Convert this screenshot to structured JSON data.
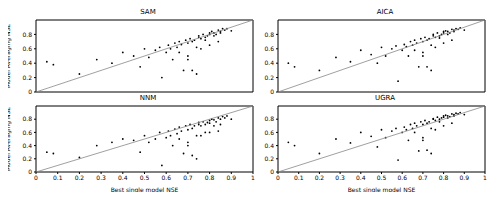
{
  "chart_data": [
    {
      "type": "scatter",
      "title": "SAM",
      "y_label": "Model Averaging NSE",
      "tick_labels": "y",
      "xlim": [
        0,
        1
      ],
      "xticks": [
        0,
        0.1,
        0.2,
        0.3,
        0.4,
        0.5,
        0.6,
        0.7,
        0.8,
        0.9,
        1
      ],
      "ylim": [
        0,
        1
      ],
      "yticks": [
        0,
        0.2,
        0.4,
        0.6,
        0.8
      ],
      "series": [
        {
          "type": "scatter",
          "color": "#000000",
          "marker": "dot",
          "x": [
            0.05,
            0.08,
            0.2,
            0.28,
            0.35,
            0.4,
            0.45,
            0.48,
            0.5,
            0.52,
            0.55,
            0.57,
            0.6,
            0.61,
            0.62,
            0.63,
            0.64,
            0.65,
            0.66,
            0.67,
            0.68,
            0.69,
            0.7,
            0.7,
            0.71,
            0.72,
            0.73,
            0.74,
            0.75,
            0.75,
            0.76,
            0.77,
            0.78,
            0.78,
            0.79,
            0.8,
            0.8,
            0.81,
            0.82,
            0.82,
            0.83,
            0.84,
            0.85,
            0.85,
            0.86,
            0.87,
            0.88,
            0.9,
            0.58,
            0.66,
            0.72,
            0.76,
            0.8,
            0.84,
            0.7,
            0.74
          ],
          "values": [
            0.42,
            0.38,
            0.25,
            0.45,
            0.4,
            0.55,
            0.5,
            0.35,
            0.6,
            0.48,
            0.58,
            0.62,
            0.55,
            0.65,
            0.6,
            0.45,
            0.68,
            0.62,
            0.7,
            0.66,
            0.3,
            0.72,
            0.68,
            0.5,
            0.74,
            0.7,
            0.72,
            0.62,
            0.76,
            0.78,
            0.74,
            0.8,
            0.76,
            0.72,
            0.78,
            0.82,
            0.8,
            0.84,
            0.78,
            0.82,
            0.8,
            0.86,
            0.84,
            0.82,
            0.88,
            0.86,
            0.88,
            0.85,
            0.2,
            0.55,
            0.3,
            0.6,
            0.65,
            0.7,
            0.45,
            0.25
          ]
        },
        {
          "type": "line",
          "color": "#888888",
          "line_style": "solid",
          "x": [
            0,
            1
          ],
          "values": [
            0,
            1
          ]
        }
      ]
    },
    {
      "type": "scatter",
      "title": "AICA",
      "tick_labels": "y",
      "xlim": [
        0,
        1
      ],
      "xticks": [
        0,
        0.1,
        0.2,
        0.3,
        0.4,
        0.5,
        0.6,
        0.7,
        0.8,
        0.9,
        1
      ],
      "ylim": [
        0,
        1
      ],
      "yticks": [
        0,
        0.2,
        0.4,
        0.6,
        0.8
      ],
      "series": [
        {
          "type": "scatter",
          "color": "#000000",
          "marker": "dot",
          "x": [
            0.05,
            0.08,
            0.2,
            0.28,
            0.35,
            0.4,
            0.45,
            0.48,
            0.5,
            0.52,
            0.55,
            0.57,
            0.6,
            0.61,
            0.62,
            0.63,
            0.64,
            0.65,
            0.66,
            0.67,
            0.68,
            0.69,
            0.7,
            0.7,
            0.71,
            0.72,
            0.73,
            0.74,
            0.75,
            0.75,
            0.76,
            0.77,
            0.78,
            0.78,
            0.79,
            0.8,
            0.8,
            0.81,
            0.82,
            0.82,
            0.83,
            0.84,
            0.85,
            0.85,
            0.86,
            0.87,
            0.88,
            0.9,
            0.58,
            0.66,
            0.72,
            0.76,
            0.8,
            0.84,
            0.7,
            0.74
          ],
          "values": [
            0.4,
            0.35,
            0.3,
            0.48,
            0.42,
            0.58,
            0.52,
            0.4,
            0.62,
            0.5,
            0.6,
            0.64,
            0.58,
            0.66,
            0.63,
            0.5,
            0.7,
            0.65,
            0.72,
            0.68,
            0.35,
            0.74,
            0.7,
            0.55,
            0.76,
            0.72,
            0.74,
            0.65,
            0.78,
            0.8,
            0.76,
            0.82,
            0.78,
            0.75,
            0.8,
            0.84,
            0.82,
            0.85,
            0.8,
            0.84,
            0.82,
            0.87,
            0.86,
            0.84,
            0.88,
            0.87,
            0.89,
            0.86,
            0.15,
            0.58,
            0.35,
            0.62,
            0.68,
            0.72,
            0.5,
            0.3
          ]
        },
        {
          "type": "line",
          "color": "#888888",
          "line_style": "solid",
          "x": [
            0,
            1
          ],
          "values": [
            0,
            1
          ]
        }
      ]
    },
    {
      "type": "scatter",
      "title": "NNM",
      "x_label": "Best single model NSE",
      "y_label": "Model Averaging NSE",
      "xlim": [
        0,
        1
      ],
      "xticks": [
        0,
        0.1,
        0.2,
        0.3,
        0.4,
        0.5,
        0.6,
        0.7,
        0.8,
        0.9,
        1
      ],
      "ylim": [
        0,
        1
      ],
      "yticks": [
        0,
        0.2,
        0.4,
        0.6,
        0.8
      ],
      "series": [
        {
          "type": "scatter",
          "color": "#000000",
          "marker": "dot",
          "x": [
            0.05,
            0.08,
            0.2,
            0.28,
            0.35,
            0.4,
            0.45,
            0.48,
            0.5,
            0.52,
            0.55,
            0.57,
            0.6,
            0.61,
            0.62,
            0.63,
            0.64,
            0.65,
            0.66,
            0.67,
            0.68,
            0.69,
            0.7,
            0.7,
            0.71,
            0.72,
            0.73,
            0.74,
            0.75,
            0.75,
            0.76,
            0.77,
            0.78,
            0.78,
            0.79,
            0.8,
            0.8,
            0.81,
            0.82,
            0.82,
            0.83,
            0.84,
            0.85,
            0.85,
            0.86,
            0.87,
            0.88,
            0.9,
            0.58,
            0.66,
            0.72,
            0.76,
            0.8,
            0.84,
            0.7,
            0.74
          ],
          "values": [
            0.3,
            0.28,
            0.22,
            0.4,
            0.45,
            0.5,
            0.48,
            0.3,
            0.55,
            0.45,
            0.5,
            0.6,
            0.52,
            0.62,
            0.55,
            0.4,
            0.65,
            0.58,
            0.68,
            0.62,
            0.28,
            0.7,
            0.64,
            0.45,
            0.72,
            0.66,
            0.7,
            0.55,
            0.72,
            0.75,
            0.7,
            0.76,
            0.72,
            0.6,
            0.75,
            0.78,
            0.74,
            0.8,
            0.7,
            0.79,
            0.76,
            0.82,
            0.8,
            0.72,
            0.84,
            0.82,
            0.85,
            0.8,
            0.1,
            0.5,
            0.25,
            0.55,
            0.6,
            0.62,
            0.4,
            0.2
          ]
        },
        {
          "type": "line",
          "color": "#888888",
          "line_style": "solid",
          "x": [
            0,
            1
          ],
          "values": [
            0,
            1
          ]
        }
      ]
    },
    {
      "type": "scatter",
      "title": "UGRA",
      "x_label": "Best single model NSE",
      "xlim": [
        0,
        1
      ],
      "xticks": [
        0,
        0.1,
        0.2,
        0.3,
        0.4,
        0.5,
        0.6,
        0.7,
        0.8,
        0.9,
        1
      ],
      "ylim": [
        0,
        1
      ],
      "yticks": [
        0,
        0.2,
        0.4,
        0.6,
        0.8
      ],
      "series": [
        {
          "type": "scatter",
          "color": "#000000",
          "marker": "dot",
          "x": [
            0.05,
            0.08,
            0.2,
            0.28,
            0.35,
            0.4,
            0.45,
            0.48,
            0.5,
            0.52,
            0.55,
            0.57,
            0.6,
            0.61,
            0.62,
            0.63,
            0.64,
            0.65,
            0.66,
            0.67,
            0.68,
            0.69,
            0.7,
            0.7,
            0.71,
            0.72,
            0.73,
            0.74,
            0.75,
            0.75,
            0.76,
            0.77,
            0.78,
            0.78,
            0.79,
            0.8,
            0.8,
            0.81,
            0.82,
            0.82,
            0.83,
            0.84,
            0.85,
            0.85,
            0.86,
            0.87,
            0.88,
            0.9,
            0.58,
            0.66,
            0.72,
            0.76,
            0.8,
            0.84,
            0.7,
            0.74
          ],
          "values": [
            0.45,
            0.4,
            0.28,
            0.5,
            0.44,
            0.6,
            0.54,
            0.38,
            0.64,
            0.52,
            0.62,
            0.66,
            0.6,
            0.68,
            0.64,
            0.48,
            0.72,
            0.66,
            0.74,
            0.7,
            0.32,
            0.76,
            0.72,
            0.52,
            0.78,
            0.74,
            0.76,
            0.66,
            0.8,
            0.81,
            0.78,
            0.83,
            0.8,
            0.76,
            0.82,
            0.85,
            0.83,
            0.86,
            0.82,
            0.85,
            0.84,
            0.88,
            0.87,
            0.85,
            0.89,
            0.88,
            0.9,
            0.87,
            0.18,
            0.6,
            0.33,
            0.64,
            0.7,
            0.74,
            0.48,
            0.28
          ]
        },
        {
          "type": "line",
          "color": "#888888",
          "line_style": "solid",
          "x": [
            0,
            1
          ],
          "values": [
            0,
            1
          ]
        }
      ]
    }
  ]
}
